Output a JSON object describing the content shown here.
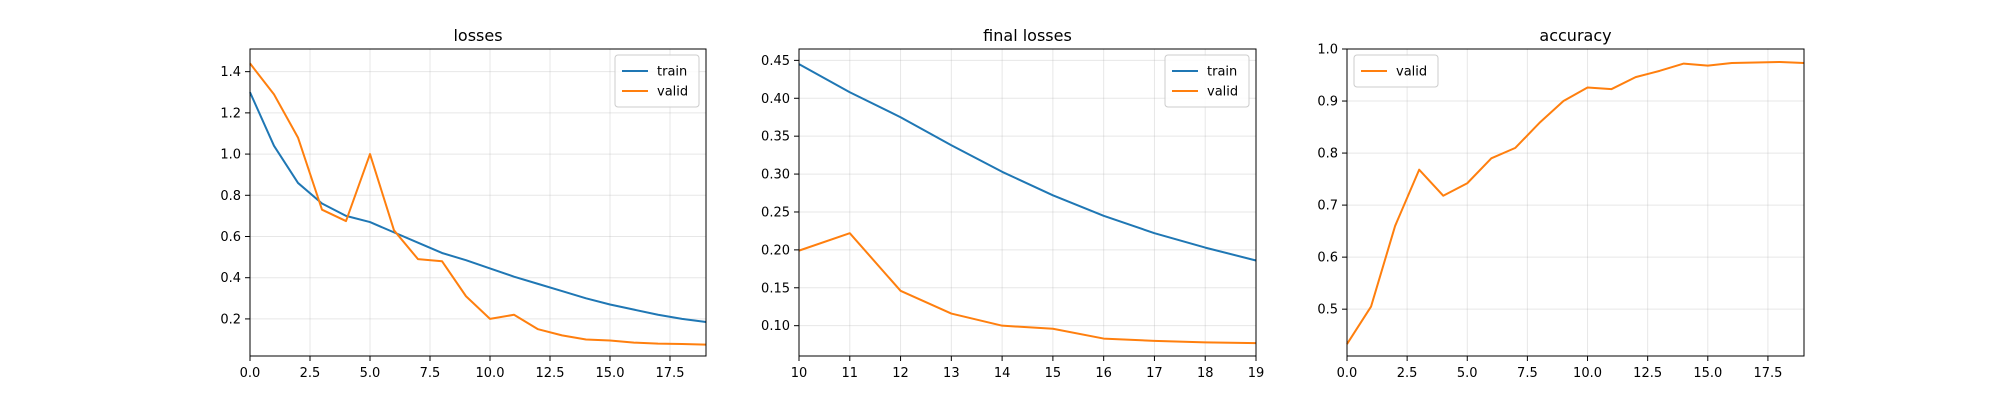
{
  "chart_data": [
    {
      "type": "line",
      "title": "losses",
      "xlabel": "",
      "ylabel": "",
      "xlim": [
        0,
        19
      ],
      "ylim": [
        0.02,
        1.51
      ],
      "xticks": [
        0,
        2.5,
        5,
        7.5,
        10,
        12.5,
        15,
        17.5
      ],
      "xtick_labels": [
        "0.0",
        "2.5",
        "5.0",
        "7.5",
        "10.0",
        "12.5",
        "15.0",
        "17.5"
      ],
      "yticks": [
        0.2,
        0.4,
        0.6,
        0.8,
        1.0,
        1.2,
        1.4
      ],
      "ytick_labels": [
        "0.2",
        "0.4",
        "0.6",
        "0.8",
        "1.0",
        "1.2",
        "1.4"
      ],
      "grid": true,
      "legend_position": "top-right",
      "x": [
        0,
        1,
        2,
        3,
        4,
        5,
        6,
        7,
        8,
        9,
        10,
        11,
        12,
        13,
        14,
        15,
        16,
        17,
        18,
        19
      ],
      "series": [
        {
          "name": "train",
          "color": "#1f77b4",
          "values": [
            1.3,
            1.04,
            0.86,
            0.76,
            0.7,
            0.67,
            0.62,
            0.57,
            0.52,
            0.485,
            0.445,
            0.405,
            0.37,
            0.335,
            0.3,
            0.27,
            0.245,
            0.22,
            0.2,
            0.185
          ]
        },
        {
          "name": "valid",
          "color": "#ff7f0e",
          "values": [
            1.44,
            1.29,
            1.08,
            0.73,
            0.675,
            1.0,
            0.63,
            0.49,
            0.48,
            0.31,
            0.2,
            0.22,
            0.15,
            0.12,
            0.1,
            0.095,
            0.085,
            0.08,
            0.078,
            0.075
          ]
        }
      ]
    },
    {
      "type": "line",
      "title": "final losses",
      "xlabel": "",
      "ylabel": "",
      "xlim": [
        10,
        19
      ],
      "ylim": [
        0.06,
        0.465
      ],
      "xticks": [
        10,
        11,
        12,
        13,
        14,
        15,
        16,
        17,
        18,
        19
      ],
      "xtick_labels": [
        "10",
        "11",
        "12",
        "13",
        "14",
        "15",
        "16",
        "17",
        "18",
        "19"
      ],
      "yticks": [
        0.1,
        0.15,
        0.2,
        0.25,
        0.3,
        0.35,
        0.4,
        0.45
      ],
      "ytick_labels": [
        "0.10",
        "0.15",
        "0.20",
        "0.25",
        "0.30",
        "0.35",
        "0.40",
        "0.45"
      ],
      "grid": true,
      "legend_position": "top-right",
      "x": [
        10,
        11,
        12,
        13,
        14,
        15,
        16,
        17,
        18,
        19
      ],
      "series": [
        {
          "name": "train",
          "color": "#1f77b4",
          "values": [
            0.445,
            0.408,
            0.375,
            0.338,
            0.303,
            0.272,
            0.245,
            0.222,
            0.203,
            0.186
          ]
        },
        {
          "name": "valid",
          "color": "#ff7f0e",
          "values": [
            0.199,
            0.222,
            0.146,
            0.116,
            0.1,
            0.096,
            0.083,
            0.08,
            0.078,
            0.077
          ]
        }
      ]
    },
    {
      "type": "line",
      "title": "accuracy",
      "xlabel": "",
      "ylabel": "",
      "xlim": [
        0,
        19
      ],
      "ylim": [
        0.41,
        1.0
      ],
      "xticks": [
        0,
        2.5,
        5,
        7.5,
        10,
        12.5,
        15,
        17.5
      ],
      "xtick_labels": [
        "0.0",
        "2.5",
        "5.0",
        "7.5",
        "10.0",
        "12.5",
        "15.0",
        "17.5"
      ],
      "yticks": [
        0.5,
        0.6,
        0.7,
        0.8,
        0.9,
        1.0
      ],
      "ytick_labels": [
        "0.5",
        "0.6",
        "0.7",
        "0.8",
        "0.9",
        "1.0"
      ],
      "grid": true,
      "legend_position": "top-left",
      "x": [
        0,
        1,
        2,
        3,
        4,
        5,
        6,
        7,
        8,
        9,
        10,
        11,
        12,
        13,
        14,
        15,
        16,
        17,
        18,
        19
      ],
      "series": [
        {
          "name": "valid",
          "color": "#ff7f0e",
          "values": [
            0.433,
            0.505,
            0.66,
            0.768,
            0.718,
            0.742,
            0.79,
            0.81,
            0.858,
            0.9,
            0.926,
            0.923,
            0.946,
            0.958,
            0.972,
            0.968,
            0.973,
            0.974,
            0.975,
            0.973
          ]
        }
      ]
    }
  ]
}
